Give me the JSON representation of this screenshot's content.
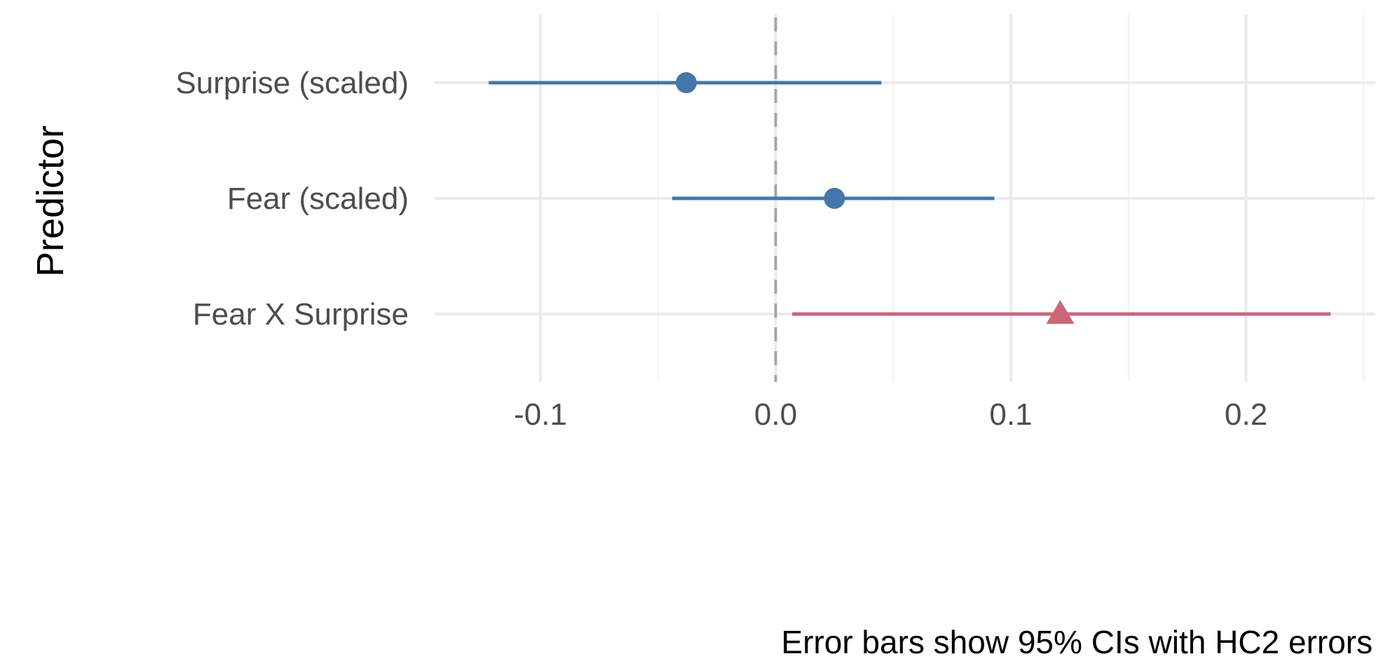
{
  "chart_data": {
    "type": "scatter",
    "subtype": "coefficient-plot",
    "title": "",
    "xlabel": "",
    "ylabel": "Predictor",
    "caption": "Error bars show 95% CIs with HC2 errors",
    "xlim": [
      -0.145,
      0.255
    ],
    "x_ticks": [
      -0.1,
      0.0,
      0.1,
      0.2
    ],
    "x_tick_labels": [
      "-0.1",
      "0.0",
      "0.1",
      "0.2"
    ],
    "categories": [
      "Surprise (scaled)",
      "Fear (scaled)",
      "Fear X Surprise"
    ],
    "reference_line": {
      "x": 0,
      "style": "dashed"
    },
    "grid": true,
    "points": [
      {
        "label": "Surprise (scaled)",
        "estimate": -0.038,
        "ci_low": -0.122,
        "ci_high": 0.045,
        "shape": "circle",
        "color": "#4477aa"
      },
      {
        "label": "Fear (scaled)",
        "estimate": 0.025,
        "ci_low": -0.044,
        "ci_high": 0.093,
        "shape": "circle",
        "color": "#4477aa"
      },
      {
        "label": "Fear X Surprise",
        "estimate": 0.121,
        "ci_low": 0.007,
        "ci_high": 0.236,
        "shape": "triangle",
        "color": "#cc6677"
      }
    ]
  }
}
